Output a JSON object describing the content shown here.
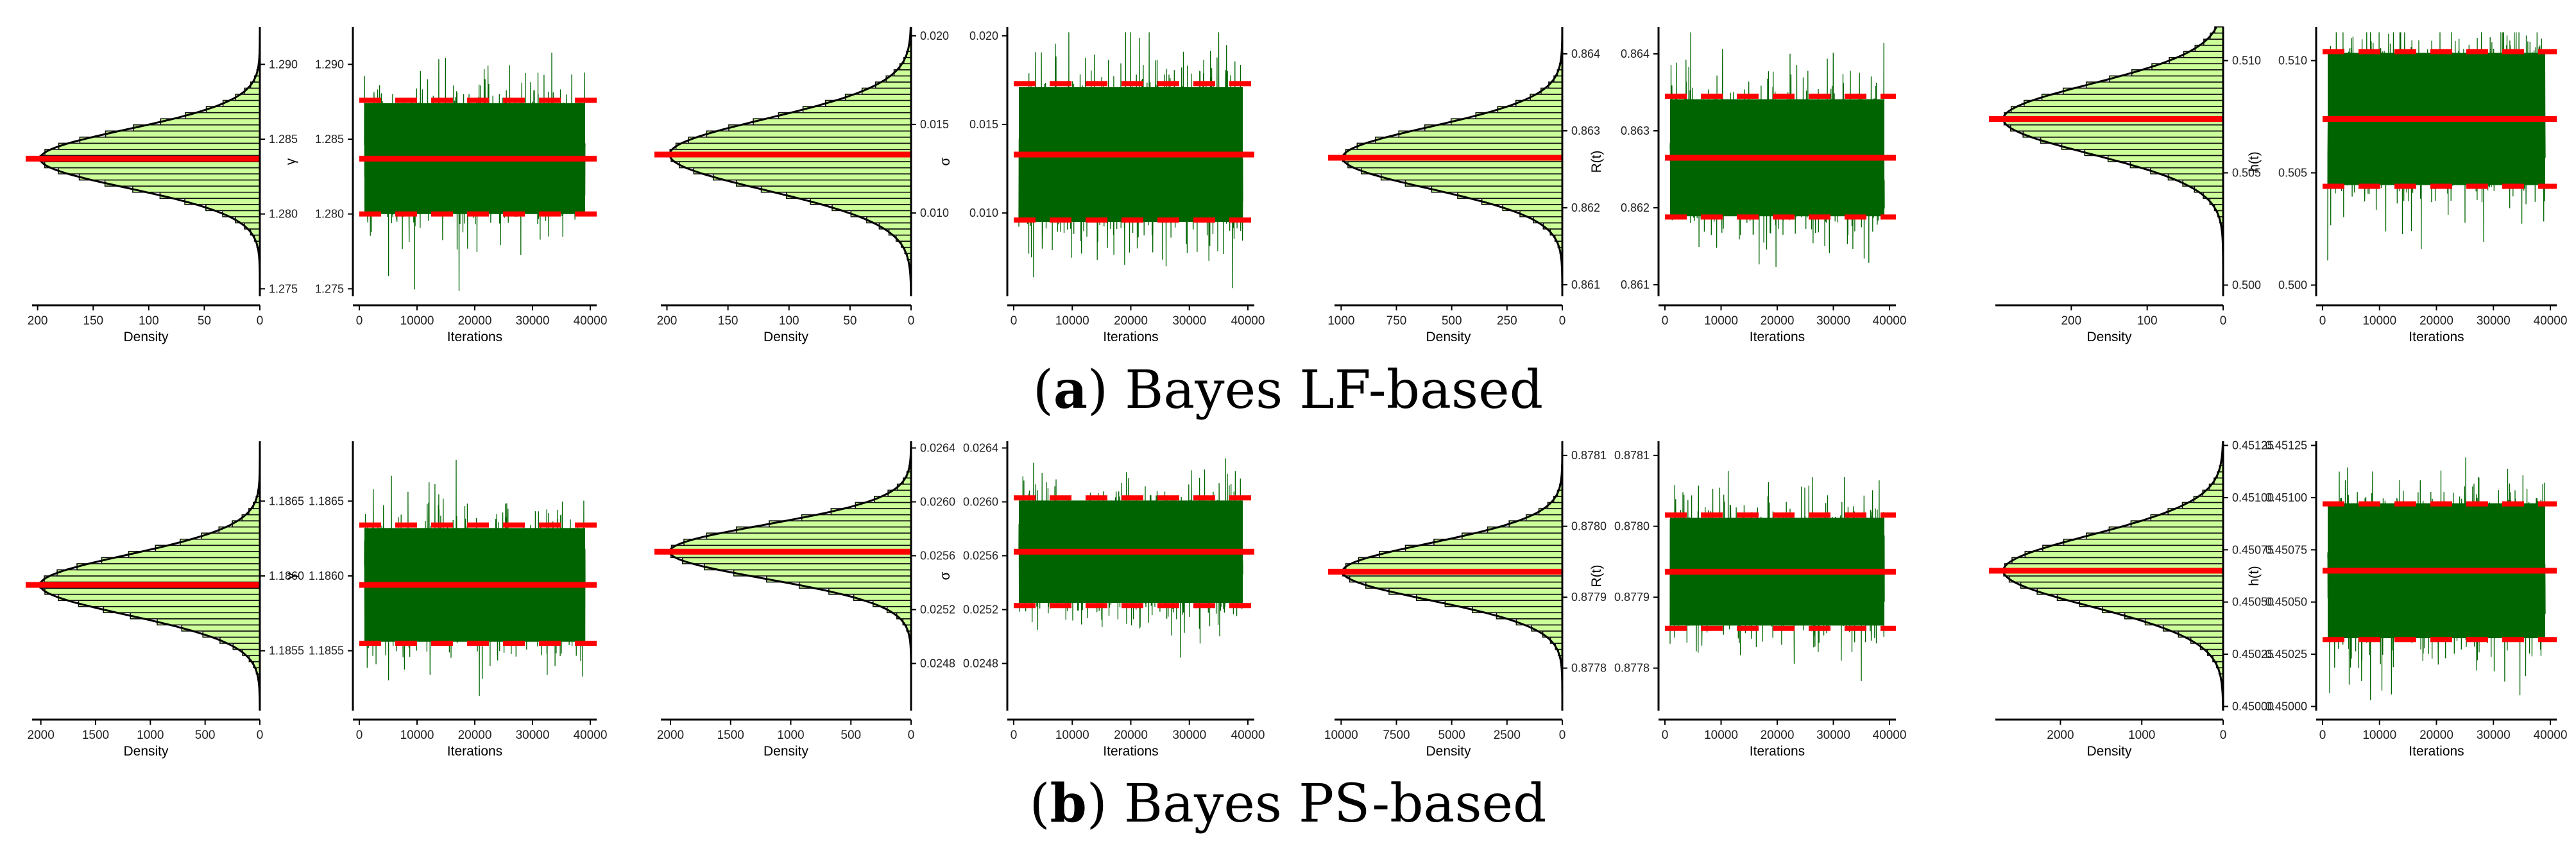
{
  "labels": {
    "density": "Density",
    "iterations": "Iterations"
  },
  "colors": {
    "trace": "#006400",
    "ref": "#ff0000",
    "hist_fill": "#ccff99",
    "axis": "#000000"
  },
  "panels": [
    {
      "letter": "a",
      "title": "Bayes LF-based",
      "chart_data": [
        {
          "type": "trace",
          "param_label": "γ",
          "ylim": [
            1.2745,
            1.2925
          ],
          "yticks": [
            "1.275",
            "1.280",
            "1.285",
            "1.290"
          ],
          "yvalues": [
            1.275,
            1.28,
            1.285,
            1.29
          ],
          "density_ticks": [
            "200",
            "150",
            "100",
            "50",
            "0"
          ],
          "density_values": [
            200,
            150,
            100,
            50,
            0
          ],
          "density_max": 205,
          "mean": 1.2837,
          "lower": 1.28,
          "upper": 1.2876,
          "sd": 0.00195,
          "xlim": [
            0,
            40000
          ],
          "xticks": [
            "0",
            "10000",
            "20000",
            "30000",
            "40000"
          ]
        },
        {
          "type": "trace",
          "param_label": "σ",
          "ylim": [
            0.0053,
            0.0205
          ],
          "yticks": [
            "0.010",
            "0.015",
            "0.020"
          ],
          "yvalues": [
            0.01,
            0.015,
            0.02
          ],
          "density_ticks": [
            "200",
            "150",
            "100",
            "50",
            "0"
          ],
          "density_values": [
            200,
            150,
            100,
            50,
            0
          ],
          "density_max": 205,
          "mean": 0.0133,
          "lower": 0.0096,
          "upper": 0.0173,
          "sd": 0.002,
          "xlim": [
            0,
            40000
          ],
          "xticks": [
            "0",
            "10000",
            "20000",
            "30000",
            "40000"
          ]
        },
        {
          "type": "trace",
          "param_label": "R(t)",
          "ylim": [
            0.86085,
            0.86435
          ],
          "yticks": [
            "0.861",
            "0.862",
            "0.863",
            "0.864"
          ],
          "yvalues": [
            0.861,
            0.862,
            0.863,
            0.864
          ],
          "density_ticks": [
            "1000",
            "750",
            "500",
            "250",
            "0"
          ],
          "density_values": [
            1000,
            750,
            500,
            250,
            0
          ],
          "density_max": 1030,
          "mean": 0.86265,
          "lower": 0.86188,
          "upper": 0.86345,
          "sd": 0.0004,
          "xlim": [
            0,
            40000
          ],
          "xticks": [
            "0",
            "10000",
            "20000",
            "30000",
            "40000"
          ]
        },
        {
          "type": "trace",
          "param_label": "h(t)",
          "ylim": [
            0.4995,
            0.5115
          ],
          "yticks": [
            "0.500",
            "0.505",
            "0.510"
          ],
          "yvalues": [
            0.5,
            0.505,
            0.51
          ],
          "density_ticks": [
            "200",
            "100",
            "0"
          ],
          "density_values": [
            200,
            100,
            0
          ],
          "density_max": 300,
          "mean": 0.5074,
          "lower": 0.5044,
          "upper": 0.5104,
          "sd": 0.00155,
          "xlim": [
            0,
            40000
          ],
          "xticks": [
            "0",
            "10000",
            "20000",
            "30000",
            "40000"
          ]
        }
      ]
    },
    {
      "letter": "b",
      "title": "Bayes PS-based",
      "chart_data": [
        {
          "type": "trace",
          "param_label": "γ",
          "ylim": [
            1.1851,
            1.1869
          ],
          "yticks": [
            "1.1855",
            "1.1860",
            "1.1865"
          ],
          "yvalues": [
            1.1855,
            1.186,
            1.1865
          ],
          "density_ticks": [
            "2000",
            "1500",
            "1000",
            "500",
            "0"
          ],
          "density_values": [
            2000,
            1500,
            1000,
            500,
            0
          ],
          "density_max": 2080,
          "mean": 1.18594,
          "lower": 1.18555,
          "upper": 1.18634,
          "sd": 0.0002,
          "xlim": [
            0,
            40000
          ],
          "xticks": [
            "0",
            "10000",
            "20000",
            "30000",
            "40000"
          ]
        },
        {
          "type": "trace",
          "param_label": "σ",
          "ylim": [
            0.02445,
            0.02645
          ],
          "yticks": [
            "0.0248",
            "0.0252",
            "0.0256",
            "0.0260",
            "0.0264"
          ],
          "yvalues": [
            0.0248,
            0.0252,
            0.0256,
            0.026,
            0.0264
          ],
          "density_ticks": [
            "2000",
            "1500",
            "1000",
            "500",
            "0"
          ],
          "density_values": [
            2000,
            1500,
            1000,
            500,
            0
          ],
          "density_max": 2080,
          "mean": 0.02563,
          "lower": 0.02523,
          "upper": 0.02603,
          "sd": 0.0002,
          "xlim": [
            0,
            40000
          ],
          "xticks": [
            "0",
            "10000",
            "20000",
            "30000",
            "40000"
          ]
        },
        {
          "type": "trace",
          "param_label": "R(t)",
          "ylim": [
            0.87774,
            0.87812
          ],
          "yticks": [
            "0.8778",
            "0.8779",
            "0.8780",
            "0.8781"
          ],
          "yvalues": [
            0.8778,
            0.8779,
            0.878,
            0.8781
          ],
          "density_ticks": [
            "10000",
            "7500",
            "5000",
            "2500",
            "0"
          ],
          "density_values": [
            10000,
            7500,
            5000,
            2500,
            0
          ],
          "density_max": 10300,
          "mean": 0.877936,
          "lower": 0.877856,
          "upper": 0.878016,
          "sd": 4e-05,
          "xlim": [
            0,
            40000
          ],
          "xticks": [
            "0",
            "10000",
            "20000",
            "30000",
            "40000"
          ]
        },
        {
          "type": "trace",
          "param_label": "h(t)",
          "ylim": [
            0.44998,
            0.45127
          ],
          "yticks": [
            "0.45000",
            "0.45025",
            "0.45050",
            "0.45075",
            "0.45100",
            "0.45125"
          ],
          "yvalues": [
            0.45,
            0.45025,
            0.4505,
            0.45075,
            0.451,
            0.45125
          ],
          "density_ticks": [
            "2000",
            "1000",
            "0"
          ],
          "density_values": [
            2000,
            1000,
            0
          ],
          "density_max": 2800,
          "mean": 0.45065,
          "lower": 0.45032,
          "upper": 0.45097,
          "sd": 0.00017,
          "xlim": [
            0,
            40000
          ],
          "xticks": [
            "0",
            "10000",
            "20000",
            "30000",
            "40000"
          ]
        }
      ]
    }
  ]
}
